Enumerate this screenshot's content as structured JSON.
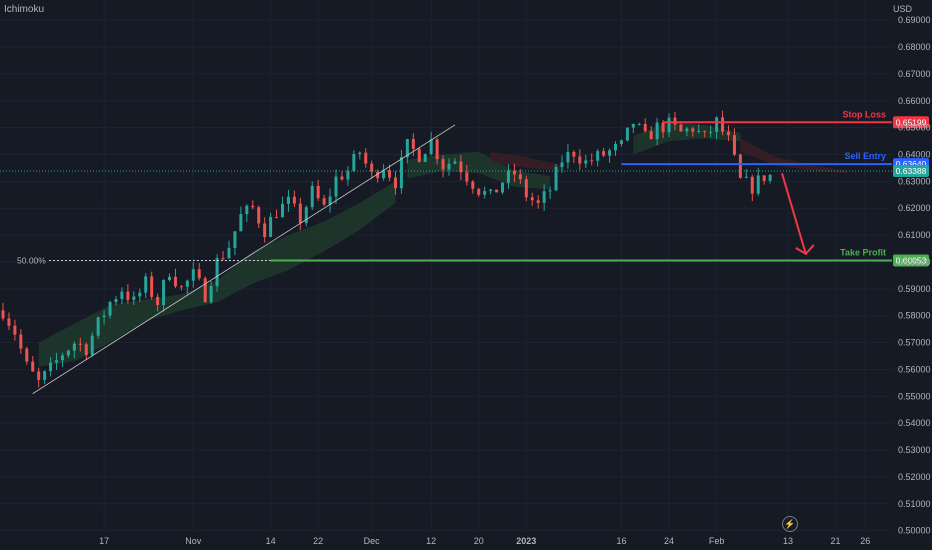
{
  "indicator_label": "Ichimoku",
  "currency": "USD",
  "colors": {
    "background": "#161a25",
    "grid": "#1f2330",
    "bull": "#26a69a",
    "bear": "#ef5350",
    "stop_loss": "#f23645",
    "sell_entry": "#2962ff",
    "take_profit": "#4caf50",
    "cloud_bull": "#1e3a2c",
    "cloud_bear": "#3a1e24",
    "trend_line": "#c8c8c8"
  },
  "icons": {
    "lightning": "lightning-icon"
  },
  "chart_data": {
    "type": "candlestick",
    "title": "",
    "xlabel": "",
    "ylabel": "",
    "ylim": [
      0.5,
      0.69
    ],
    "grid": true,
    "y_ticks": [
      "0.69000",
      "0.68000",
      "0.67000",
      "0.66000",
      "0.65000",
      "0.64000",
      "0.63000",
      "0.62000",
      "0.61000",
      "0.60000",
      "0.59000",
      "0.58000",
      "0.57000",
      "0.56000",
      "0.55000",
      "0.54000",
      "0.53000",
      "0.52000",
      "0.51000",
      "0.50000"
    ],
    "x_ticks": [
      {
        "label": "17",
        "x": 17,
        "bold": false
      },
      {
        "label": "Nov",
        "x": 32,
        "bold": false
      },
      {
        "label": "14",
        "x": 45,
        "bold": false
      },
      {
        "label": "22",
        "x": 53,
        "bold": false
      },
      {
        "label": "Dec",
        "x": 62,
        "bold": false
      },
      {
        "label": "12",
        "x": 72,
        "bold": false
      },
      {
        "label": "20",
        "x": 80,
        "bold": false
      },
      {
        "label": "2023",
        "x": 88,
        "bold": true
      },
      {
        "label": "16",
        "x": 104,
        "bold": false
      },
      {
        "label": "24",
        "x": 112,
        "bold": false
      },
      {
        "label": "Feb",
        "x": 120,
        "bold": false
      },
      {
        "label": "13",
        "x": 132,
        "bold": false
      },
      {
        "label": "21",
        "x": 140,
        "bold": false
      },
      {
        "label": "26",
        "x": 145,
        "bold": false
      }
    ],
    "price_path": [
      [
        0,
        0.582
      ],
      [
        2,
        0.574
      ],
      [
        4,
        0.561
      ],
      [
        6,
        0.555
      ],
      [
        8,
        0.56
      ],
      [
        10,
        0.566
      ],
      [
        12,
        0.57
      ],
      [
        14,
        0.568
      ],
      [
        16,
        0.577
      ],
      [
        18,
        0.585
      ],
      [
        20,
        0.59
      ],
      [
        22,
        0.585
      ],
      [
        24,
        0.592
      ],
      [
        26,
        0.585
      ],
      [
        28,
        0.597
      ],
      [
        30,
        0.59
      ],
      [
        32,
        0.595
      ],
      [
        34,
        0.588
      ],
      [
        36,
        0.6
      ],
      [
        38,
        0.606
      ],
      [
        40,
        0.617
      ],
      [
        42,
        0.62
      ],
      [
        44,
        0.612
      ],
      [
        46,
        0.619
      ],
      [
        48,
        0.622
      ],
      [
        50,
        0.616
      ],
      [
        52,
        0.626
      ],
      [
        54,
        0.62
      ],
      [
        56,
        0.631
      ],
      [
        58,
        0.634
      ],
      [
        60,
        0.641
      ],
      [
        62,
        0.632
      ],
      [
        64,
        0.636
      ],
      [
        66,
        0.63
      ],
      [
        68,
        0.643
      ],
      [
        70,
        0.64
      ],
      [
        72,
        0.645
      ],
      [
        74,
        0.636
      ],
      [
        76,
        0.638
      ],
      [
        78,
        0.632
      ],
      [
        80,
        0.627
      ],
      [
        82,
        0.624
      ],
      [
        84,
        0.63
      ],
      [
        86,
        0.633
      ],
      [
        88,
        0.625
      ],
      [
        90,
        0.621
      ],
      [
        92,
        0.627
      ],
      [
        94,
        0.638
      ],
      [
        96,
        0.641
      ],
      [
        98,
        0.637
      ],
      [
        100,
        0.639
      ],
      [
        102,
        0.641
      ],
      [
        104,
        0.643
      ],
      [
        106,
        0.652
      ],
      [
        108,
        0.646
      ],
      [
        110,
        0.65
      ],
      [
        112,
        0.651
      ],
      [
        114,
        0.648
      ],
      [
        116,
        0.65
      ],
      [
        118,
        0.646
      ],
      [
        120,
        0.652
      ],
      [
        122,
        0.645
      ],
      [
        124,
        0.63
      ],
      [
        126,
        0.628
      ],
      [
        128,
        0.632
      ],
      [
        129,
        0.632
      ]
    ],
    "cloud_segments": [
      {
        "kind": "bull",
        "upper": [
          [
            6,
            0.57
          ],
          [
            12,
            0.577
          ],
          [
            18,
            0.584
          ],
          [
            24,
            0.586
          ],
          [
            30,
            0.588
          ],
          [
            36,
            0.593
          ],
          [
            42,
            0.604
          ],
          [
            48,
            0.61
          ],
          [
            54,
            0.615
          ],
          [
            60,
            0.622
          ],
          [
            66,
            0.63
          ]
        ],
        "lower": [
          [
            6,
            0.561
          ],
          [
            12,
            0.563
          ],
          [
            18,
            0.57
          ],
          [
            24,
            0.578
          ],
          [
            30,
            0.582
          ],
          [
            36,
            0.585
          ],
          [
            42,
            0.592
          ],
          [
            48,
            0.597
          ],
          [
            54,
            0.604
          ],
          [
            60,
            0.612
          ],
          [
            66,
            0.622
          ]
        ]
      },
      {
        "kind": "bull",
        "upper": [
          [
            68,
            0.638
          ],
          [
            74,
            0.64
          ],
          [
            80,
            0.641
          ],
          [
            86,
            0.634
          ],
          [
            92,
            0.632
          ]
        ],
        "lower": [
          [
            68,
            0.631
          ],
          [
            74,
            0.634
          ],
          [
            80,
            0.633
          ],
          [
            86,
            0.628
          ],
          [
            92,
            0.627
          ]
        ]
      },
      {
        "kind": "bear",
        "upper": [
          [
            82,
            0.641
          ],
          [
            88,
            0.639
          ],
          [
            94,
            0.636
          ]
        ],
        "lower": [
          [
            82,
            0.637
          ],
          [
            88,
            0.635
          ],
          [
            94,
            0.634
          ]
        ]
      },
      {
        "kind": "bull",
        "upper": [
          [
            106,
            0.647
          ],
          [
            112,
            0.652
          ],
          [
            118,
            0.651
          ],
          [
            124,
            0.648
          ]
        ],
        "lower": [
          [
            106,
            0.64
          ],
          [
            112,
            0.645
          ],
          [
            118,
            0.646
          ],
          [
            124,
            0.645
          ]
        ]
      },
      {
        "kind": "bear",
        "upper": [
          [
            124,
            0.646
          ],
          [
            130,
            0.639
          ],
          [
            136,
            0.636
          ],
          [
            142,
            0.634
          ]
        ],
        "lower": [
          [
            124,
            0.641
          ],
          [
            130,
            0.636
          ],
          [
            136,
            0.634
          ],
          [
            142,
            0.633
          ]
        ]
      }
    ],
    "trend_line": [
      [
        5,
        0.551
      ],
      [
        76,
        0.651
      ]
    ],
    "fib_level": {
      "label": "50.00%",
      "value": 0.60053,
      "x_start": 1,
      "x_end": 45
    },
    "levels": [
      {
        "name": "Stop Loss",
        "value": 0.65199,
        "badge": "0.65199",
        "color_key": "stop_loss",
        "x_start": 111,
        "text_x": 141
      },
      {
        "name": "Sell Entry",
        "value": 0.6364,
        "badge": "0.63640",
        "color_key": "sell_entry",
        "x_start": 104,
        "text_x": 141
      },
      {
        "name": "Take Profit",
        "value": 0.60053,
        "badge": "0.60053",
        "color_key": "take_profit",
        "x_start": 45,
        "text_x": 141
      }
    ],
    "current_price": {
      "value": 0.63388,
      "badge": "0.63388"
    },
    "arrow": {
      "from": [
        131,
        0.633
      ],
      "to": [
        135,
        0.603
      ]
    }
  }
}
